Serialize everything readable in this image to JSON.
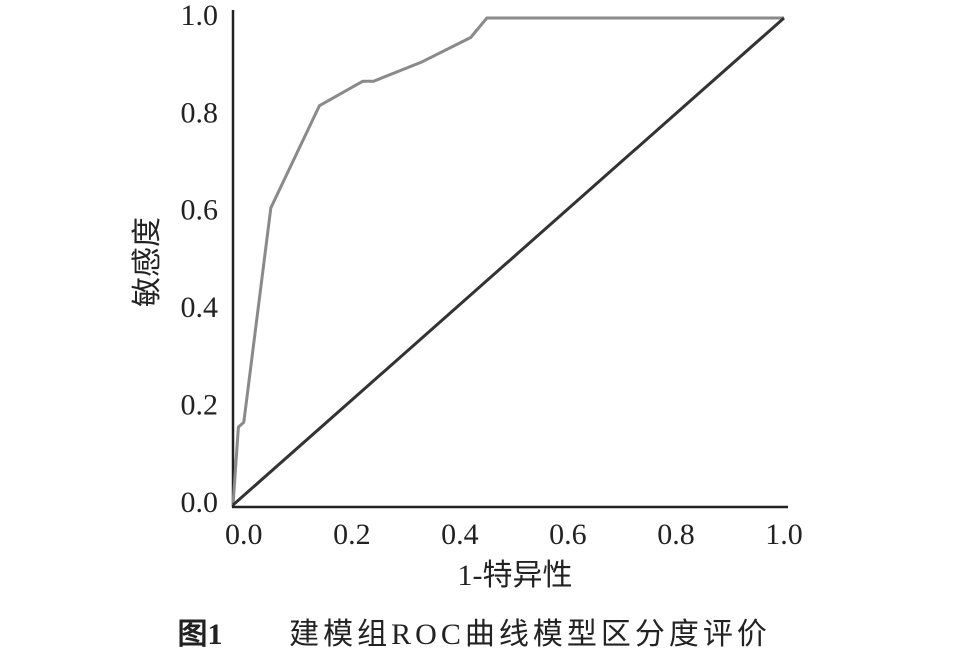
{
  "chart_data": {
    "type": "line",
    "x_label": "1-特异性",
    "y_label": "敏感度",
    "caption_number": "图1",
    "caption": "建模组ROC曲线模型区分度评价",
    "xlim": [
      -0.02,
      1.0
    ],
    "ylim": [
      0,
      1.0
    ],
    "xticks": [
      {
        "value": 0,
        "label": "0.0"
      },
      {
        "value": 0.2,
        "label": "0.2"
      },
      {
        "value": 0.4,
        "label": "0.4"
      },
      {
        "value": 0.6,
        "label": "0.6"
      },
      {
        "value": 0.8,
        "label": "0.8"
      },
      {
        "value": 1,
        "label": "1.0"
      }
    ],
    "yticks": [
      {
        "value": 0,
        "label": "0.0"
      },
      {
        "value": 0.2,
        "label": "0.2"
      },
      {
        "value": 0.4,
        "label": "0.4"
      },
      {
        "value": 0.6,
        "label": "0.6"
      },
      {
        "value": 0.8,
        "label": "0.8"
      },
      {
        "value": 1,
        "label": "1.0"
      }
    ],
    "grid": false,
    "series": [
      {
        "color": "#8a8a8a",
        "x": [
          -0.02,
          -0.01,
          0.0,
          0.05,
          0.14,
          0.22,
          0.24,
          0.33,
          0.42,
          0.45,
          1.0
        ],
        "values": [
          0,
          0.16,
          0.17,
          0.61,
          0.82,
          0.87,
          0.87,
          0.91,
          0.96,
          1.0,
          1.0
        ]
      },
      {
        "color": "#333333",
        "x": [
          -0.02,
          1.0
        ],
        "values": [
          0,
          1.0
        ]
      }
    ]
  }
}
